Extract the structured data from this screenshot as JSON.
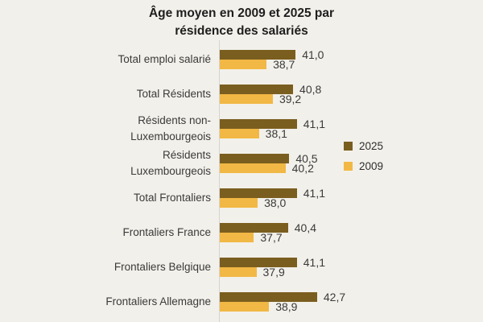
{
  "title": {
    "line1": "Âge moyen en 2009 et 2025 par",
    "line2": "résidence des salariés"
  },
  "colors": {
    "background": "#f2f0ea",
    "axis_line": "#d7d4cd",
    "series_2025": "#7a5e1f",
    "series_2009": "#f2b845",
    "text": "#3a3a3a",
    "title_text": "#1e1e1e"
  },
  "legend": {
    "position": "right",
    "items": [
      {
        "label": "2025",
        "color": "#7a5e1f"
      },
      {
        "label": "2009",
        "color": "#f2b845"
      }
    ]
  },
  "chart_data": {
    "type": "bar",
    "orientation": "horizontal",
    "title": "Âge moyen en 2009 et 2025 par résidence des salariés",
    "xlabel": "",
    "ylabel": "",
    "grid": false,
    "legend_position": "right",
    "xmin": 35,
    "xmax": 43.5,
    "decimal_separator": ",",
    "categories": [
      "Total emploi salarié",
      "Total Résidents",
      "Résidents non-\nLuxembourgeois",
      "Résidents\nLuxembourgeois",
      "Total Frontaliers",
      "Frontaliers France",
      "Frontaliers Belgique",
      "Frontaliers Allemagne"
    ],
    "series": [
      {
        "name": "2025",
        "color": "#7a5e1f",
        "values": [
          41.0,
          40.8,
          41.1,
          40.5,
          41.1,
          40.4,
          41.1,
          42.7
        ]
      },
      {
        "name": "2009",
        "color": "#f2b845",
        "values": [
          38.7,
          39.2,
          38.1,
          40.2,
          38.0,
          37.7,
          37.9,
          38.9
        ]
      }
    ]
  }
}
